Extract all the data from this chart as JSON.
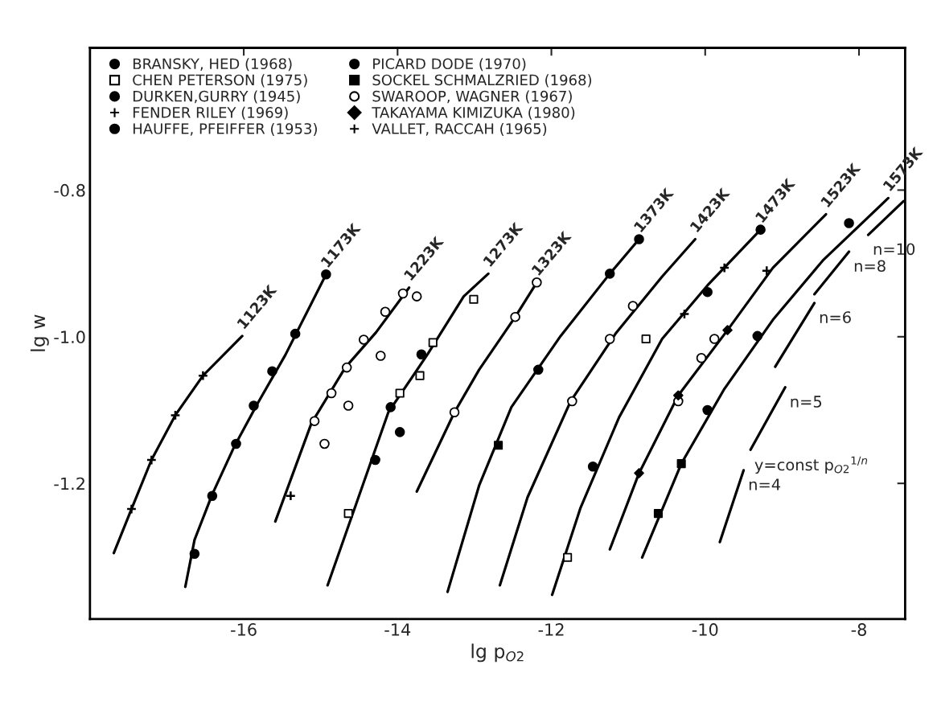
{
  "chart_data": {
    "type": "line",
    "xlabel": "lg p$_{O2}$",
    "ylabel": "lg w",
    "xlim": [
      -18,
      -7.4
    ],
    "ylim": [
      -1.385,
      -0.606
    ],
    "xticks": [
      -16,
      -14,
      -12,
      -10,
      -8
    ],
    "yticks": [
      -0.8,
      {
        "value": -1.0,
        "label": "-1.0"
      },
      {
        "value": -1.2,
        "label": "-1.2"
      }
    ],
    "grid": false,
    "legend": "top left",
    "line_style": "solid",
    "series": [
      {
        "name": "1123K",
        "type": "line",
        "color": "#000000",
        "x": [
          -17.69,
          -17.46,
          -17.2,
          -16.89,
          -16.53,
          -16.02
        ],
        "values": [
          -1.295,
          -1.235,
          -1.168,
          -1.107,
          -1.053,
          -0.999
        ]
      },
      {
        "name": "1173K",
        "type": "line",
        "color": "#000000",
        "x": [
          -16.76,
          -16.64,
          -16.41,
          -16.12,
          -15.82,
          -15.46,
          -14.93
        ],
        "values": [
          -1.341,
          -1.277,
          -1.215,
          -1.149,
          -1.091,
          -1.025,
          -0.915
        ]
      },
      {
        "name": "1223K",
        "type": "line",
        "color": "#000000",
        "x": [
          -15.59,
          -15.12,
          -14.68,
          -14.28,
          -13.85
        ],
        "values": [
          -1.252,
          -1.118,
          -1.042,
          -0.994,
          -0.933
        ]
      },
      {
        "name": "1273K",
        "type": "line",
        "color": "#000000",
        "x": [
          -14.91,
          -14.12,
          -13.61,
          -13.14,
          -12.82
        ],
        "values": [
          -1.339,
          -1.103,
          -1.024,
          -0.945,
          -0.914
        ]
      },
      {
        "name": "1323K",
        "type": "line",
        "color": "#000000",
        "x": [
          -13.75,
          -13.26,
          -12.94,
          -12.47,
          -12.19
        ],
        "values": [
          -1.211,
          -1.103,
          -1.045,
          -0.973,
          -0.926
        ]
      },
      {
        "name": "1373K",
        "type": "line",
        "color": "#000000",
        "x": [
          -13.35,
          -12.94,
          -12.52,
          -11.88,
          -11.24,
          -10.86
        ],
        "values": [
          -1.348,
          -1.203,
          -1.096,
          -0.999,
          -0.914,
          -0.867
        ]
      },
      {
        "name": "1423K",
        "type": "line",
        "color": "#000000",
        "x": [
          -12.67,
          -12.31,
          -11.75,
          -11.16,
          -10.56,
          -10.13
        ],
        "values": [
          -1.339,
          -1.219,
          -1.088,
          -0.995,
          -0.918,
          -0.867
        ]
      },
      {
        "name": "1473K",
        "type": "line",
        "color": "#000000",
        "x": [
          -11.99,
          -11.62,
          -11.12,
          -10.56,
          -9.97,
          -9.28
        ],
        "values": [
          -1.352,
          -1.233,
          -1.11,
          -1.003,
          -0.93,
          -0.854
        ]
      },
      {
        "name": "1523K",
        "type": "line",
        "color": "#000000",
        "x": [
          -11.24,
          -10.86,
          -10.35,
          -9.71,
          -9.12,
          -8.43
        ],
        "values": [
          -1.29,
          -1.186,
          -1.08,
          -0.991,
          -0.906,
          -0.833
        ]
      },
      {
        "name": "1573K",
        "type": "line",
        "color": "#000000",
        "x": [
          -10.82,
          -10.31,
          -9.75,
          -9.12,
          -8.47,
          -7.62
        ],
        "values": [
          -1.301,
          -1.173,
          -1.071,
          -0.977,
          -0.896,
          -0.811
        ]
      },
      {
        "color": "#000000",
        "x": [
          -7.88,
          -7.42
        ],
        "values": [
          -0.861,
          -0.815
        ]
      },
      {
        "color": "#000000",
        "x": [
          -8.58,
          -8.13
        ],
        "values": [
          -0.942,
          -0.884
        ]
      },
      {
        "color": "#000000",
        "x": [
          -9.09,
          -8.58
        ],
        "values": [
          -1.041,
          -0.954
        ]
      },
      {
        "color": "#000000",
        "x": [
          -9.41,
          -8.96
        ],
        "values": [
          -1.154,
          -1.069
        ]
      },
      {
        "color": "#000000",
        "x": [
          -9.81,
          -9.5
        ],
        "values": [
          -1.28,
          -1.182
        ]
      },
      {
        "name": "BRANSKY, HED (1968)",
        "type": "scatter",
        "marker": "circle",
        "color": "#000000",
        "x": [
          -14.93,
          -15.33,
          -15.63,
          -15.87,
          -16.1,
          -16.41,
          -16.64
        ],
        "values": [
          -0.915,
          -0.996,
          -1.047,
          -1.094,
          -1.146,
          -1.217,
          -1.296
        ]
      },
      {
        "name": "CHEN PETERSON (1975)",
        "type": "scatter",
        "marker": "square",
        "color": "#ffffff",
        "x": [
          -13.97,
          -13.71,
          -13.54,
          -13.01,
          -14.64,
          -11.79,
          -10.77
        ],
        "values": [
          -1.077,
          -1.053,
          -1.008,
          -0.949,
          -1.241,
          -1.301,
          -1.003
        ]
      },
      {
        "name": "DURKEN,GURRY (1945)",
        "type": "scatter",
        "marker": "circle",
        "color": "#000000",
        "x": [
          -13.69,
          -14.09,
          -14.29,
          -13.97
        ],
        "values": [
          -1.024,
          -1.096,
          -1.168,
          -1.13
        ]
      },
      {
        "name": "FENDER RILEY (1969)",
        "type": "scatter",
        "marker": "cross",
        "color": "#000000",
        "x": [
          -17.46,
          -17.2,
          -16.89,
          -16.53
        ],
        "values": [
          -1.235,
          -1.168,
          -1.107,
          -1.053
        ]
      },
      {
        "name": "HAUFFE, PFEIFFER (1953)",
        "type": "scatter",
        "marker": "circle",
        "color": "#000000",
        "x": [
          -11.24,
          -10.86,
          -12.17
        ],
        "values": [
          -0.914,
          -0.867,
          -1.045
        ]
      },
      {
        "name": "PICARD DODE (1970)",
        "type": "scatter",
        "marker": "circle",
        "color": "#000000",
        "x": [
          -9.97,
          -9.28,
          -11.46,
          -9.32,
          -8.13,
          -9.97
        ],
        "values": [
          -0.939,
          -0.854,
          -1.177,
          -0.999,
          -0.845,
          -1.1
        ]
      },
      {
        "name": "SOCKEL SCHMALZRIED (1968)",
        "type": "scatter",
        "marker": "square",
        "color": "#000000",
        "x": [
          -10.31,
          -10.61,
          -12.69
        ],
        "values": [
          -1.173,
          -1.241,
          -1.148
        ]
      },
      {
        "name": "SWAROOP, WAGNER (1967)",
        "type": "scatter",
        "marker": "circle",
        "color": "#ffffff",
        "x": [
          -15.08,
          -14.86,
          -14.66,
          -14.44,
          -14.16,
          -13.93,
          -14.95,
          -14.64,
          -14.22,
          -13.75,
          -13.26,
          -12.47,
          -12.19,
          -11.73,
          -11.24,
          -10.94,
          -10.35,
          -10.05,
          -9.88
        ],
        "values": [
          -1.115,
          -1.077,
          -1.042,
          -1.004,
          -0.966,
          -0.941,
          -1.146,
          -1.094,
          -1.026,
          -0.945,
          -1.103,
          -0.973,
          -0.926,
          -1.088,
          -1.003,
          -0.958,
          -1.088,
          -1.029,
          -1.003
        ]
      },
      {
        "name": "TAKAYAMA KIMIZUKA (1980)",
        "type": "scatter",
        "marker": "diamond",
        "color": "#000000",
        "x": [
          -10.86,
          -10.35,
          -9.71
        ],
        "values": [
          -1.186,
          -1.08,
          -0.991
        ]
      },
      {
        "name": "VALLET, RACCAH (1965)",
        "type": "scatter",
        "marker": "cross",
        "color": "#000000",
        "x": [
          -15.39,
          -10.27,
          -9.75,
          -9.2
        ],
        "values": [
          -1.217,
          -0.969,
          -0.906,
          -0.91
        ]
      }
    ],
    "annotations": [
      {
        "text": "n=10",
        "x": -7.88,
        "y": -0.861
      },
      {
        "text": "n=8",
        "x": -8.13,
        "y": -0.884
      },
      {
        "text": "n=6",
        "x": -8.58,
        "y": -0.954
      },
      {
        "text": "n=5",
        "x": -8.96,
        "y": -1.069
      },
      {
        "text": "n=4",
        "x": -9.5,
        "y": -1.182
      },
      "y=const p$_{O2}$$^{1/n}$"
    ]
  }
}
